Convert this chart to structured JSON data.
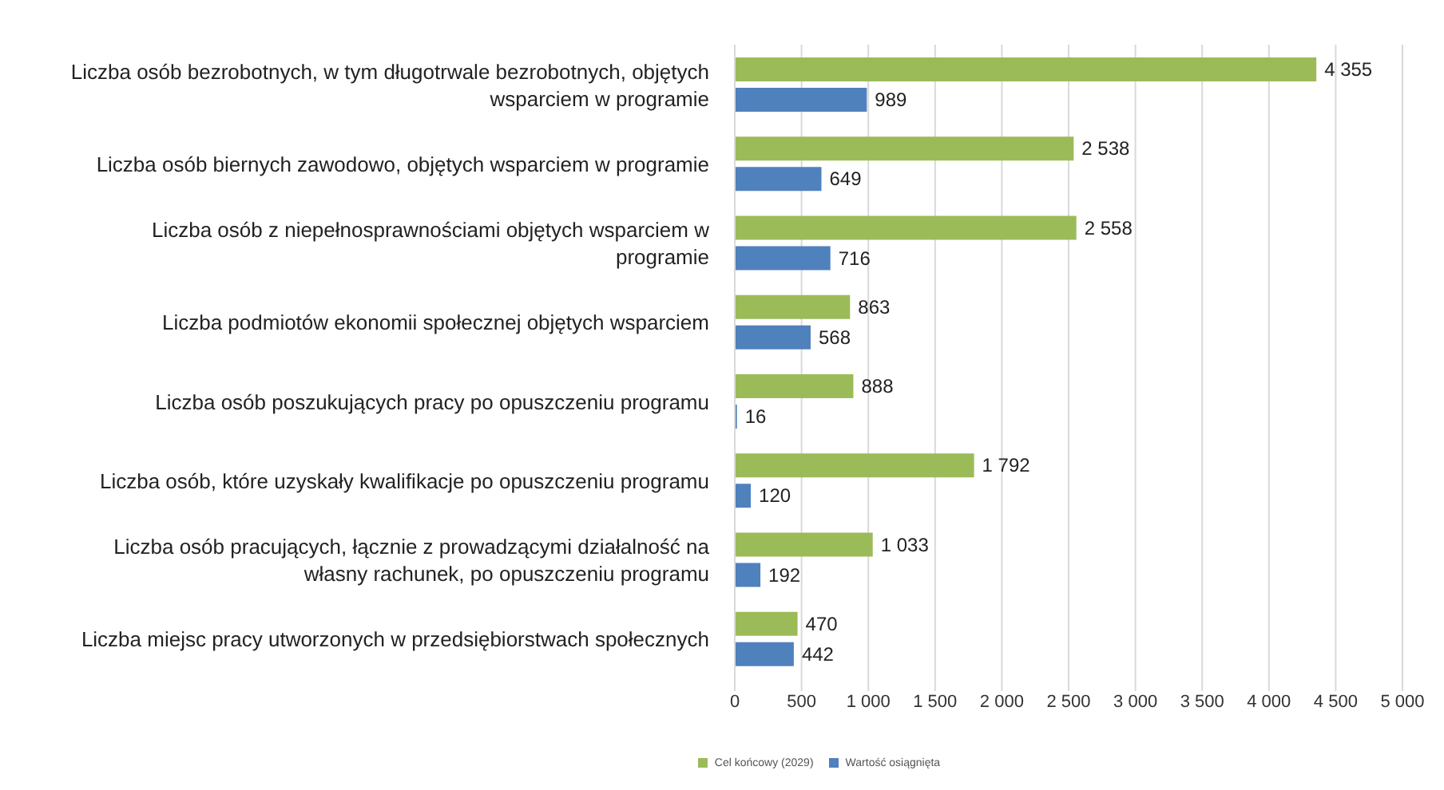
{
  "chart_data": {
    "type": "bar",
    "orientation": "horizontal",
    "categories": [
      "Liczba osób bezrobotnych, w tym długotrwale bezrobotnych, objętych wsparciem w programie",
      "Liczba osób biernych zawodowo, objętych wsparciem w programie",
      "Liczba osób z niepełnosprawnościami objętych wsparciem w programie",
      "Liczba podmiotów ekonomii społecznej objętych wsparciem",
      "Liczba osób poszukujących pracy po opuszczeniu programu",
      "Liczba osób, które uzyskały kwalifikacje po opuszczeniu programu",
      "Liczba osób pracujących, łącznie z prowadzącymi działalność na własny rachunek, po opuszczeniu programu",
      "Liczba miejsc pracy utworzonych w przedsiębiorstwach społecznych"
    ],
    "series": [
      {
        "name": "Cel końcowy (2029)",
        "color": "#9bbb59",
        "values": [
          4355,
          2538,
          2558,
          863,
          888,
          1792,
          1033,
          470
        ],
        "value_labels": [
          "4 355",
          "2 538",
          "2 558",
          "863",
          "888",
          "1 792",
          "1 033",
          "470"
        ]
      },
      {
        "name": "Wartość osiągnięta",
        "color": "#4f81bd",
        "values": [
          989,
          649,
          716,
          568,
          16,
          120,
          192,
          442
        ],
        "value_labels": [
          "989",
          "649",
          "716",
          "568",
          "16",
          "120",
          "192",
          "442"
        ]
      }
    ],
    "xlim": [
      0,
      5000
    ],
    "xticks": [
      0,
      500,
      {
        "value": 1000,
        "label": "1 000"
      },
      {
        "value": 1500,
        "label": "1 500"
      },
      {
        "value": 2000,
        "label": "2 000"
      },
      {
        "value": 2500,
        "label": "2 500"
      },
      {
        "value": 3000,
        "label": "3 000"
      },
      {
        "value": 3500,
        "label": "3 500"
      },
      {
        "value": 4000,
        "label": "4 000"
      },
      {
        "value": 4500,
        "label": "4 500"
      },
      {
        "value": 5000,
        "label": "5 000"
      }
    ],
    "grid": "x",
    "legend": "bottom"
  }
}
